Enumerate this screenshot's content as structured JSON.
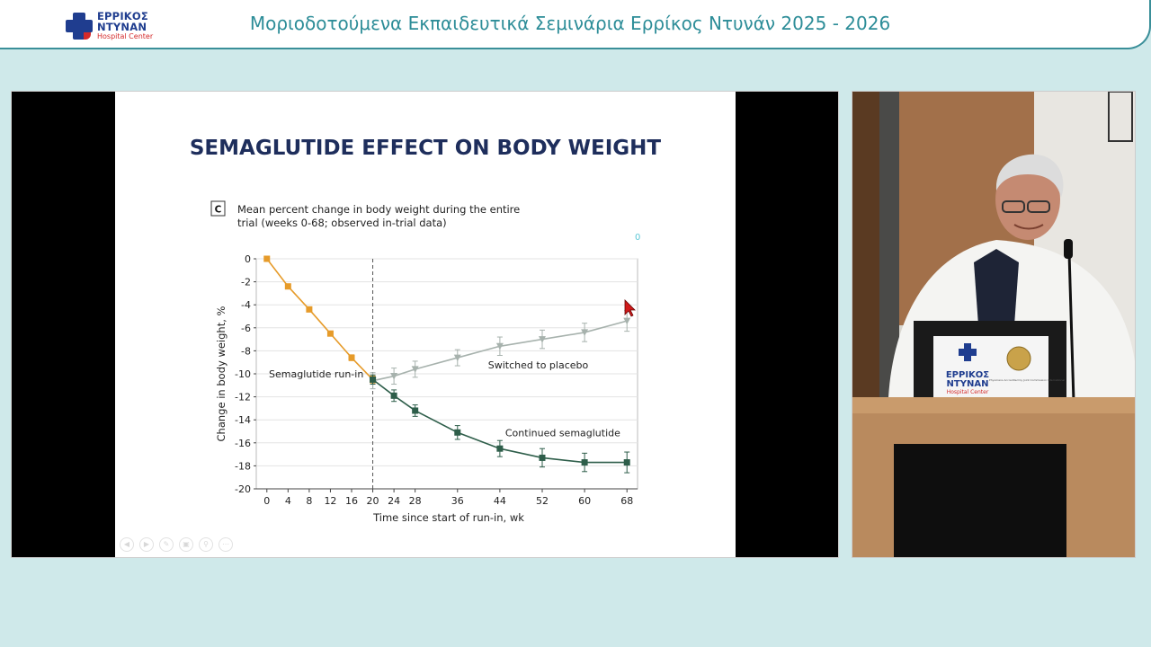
{
  "header": {
    "logo": {
      "line1": "ΕΡΡΙΚΟΣ",
      "line2": "ΝΤΥΝΑΝ",
      "line3": "Hospital Center"
    },
    "title": "Μοριοδοτούμενα Εκπαιδευτικά Σεμινάρια Ερρίκος Ντυνάν 2025 - 2026"
  },
  "slide": {
    "title": "SEMAGLUTIDE EFFECT ON BODY WEIGHT",
    "panel_label": "C",
    "caption_line1": "Mean percent change in body weight during the entire",
    "caption_line2": "trial (weeks 0-68; observed in-trial data)",
    "stray_mark": "0"
  },
  "chart_data": {
    "type": "line",
    "title": "Mean percent change in body weight during the entire trial (weeks 0-68; observed in-trial data)",
    "xlabel": "Time since start of run-in, wk",
    "ylabel": "Change in body weight, %",
    "x_ticks": [
      0,
      4,
      8,
      12,
      16,
      20,
      24,
      28,
      36,
      44,
      52,
      60,
      68
    ],
    "y_ticks": [
      0,
      -2,
      -4,
      -6,
      -8,
      -10,
      -12,
      -14,
      -16,
      -18,
      -20
    ],
    "xlim": [
      -2,
      70
    ],
    "ylim": [
      -20,
      0
    ],
    "grid": "horizontal",
    "divider_x": 20,
    "series": [
      {
        "name": "Semaglutide run-in",
        "color": "#e69b2a",
        "marker": "square",
        "x": [
          0,
          4,
          8,
          12,
          16,
          20
        ],
        "y": [
          0,
          -2.4,
          -4.4,
          -6.5,
          -8.6,
          -10.5
        ],
        "err": [
          0.15,
          0.2,
          0.2,
          0.2,
          0.25,
          0.3
        ]
      },
      {
        "name": "Switched to placebo",
        "color": "#a7b2ad",
        "marker": "triangle-down",
        "x": [
          20,
          24,
          28,
          36,
          44,
          52,
          60,
          68
        ],
        "y": [
          -10.6,
          -10.2,
          -9.6,
          -8.6,
          -7.6,
          -7.0,
          -6.4,
          -5.4
        ],
        "err": [
          0.7,
          0.7,
          0.7,
          0.7,
          0.8,
          0.8,
          0.8,
          0.9
        ]
      },
      {
        "name": "Continued semaglutide",
        "color": "#2e5e4a",
        "marker": "square",
        "x": [
          20,
          24,
          28,
          36,
          44,
          52,
          60,
          68
        ],
        "y": [
          -10.5,
          -11.9,
          -13.2,
          -15.1,
          -16.5,
          -17.3,
          -17.7,
          -17.7
        ],
        "err": [
          0.4,
          0.5,
          0.5,
          0.6,
          0.7,
          0.8,
          0.8,
          0.9
        ]
      }
    ],
    "annotations": [
      "Semaglutide run-in",
      "Switched to placebo",
      "Continued semaglutide"
    ]
  },
  "video": {
    "podium_logo": {
      "line1": "ΕΡΡΙΚΟΣ",
      "line2": "ΝΤΥΝΑΝ",
      "line3": "Hospital Center"
    },
    "podium_seal": "Physicians Accredited by Joint Commission International"
  },
  "colors": {
    "accent": "#2d8d98",
    "brand_blue": "#1f3d8f",
    "brand_red": "#d42a2a",
    "slide_title": "#1e2e5c"
  },
  "nav_icons": [
    "prev-icon",
    "next-icon",
    "pen-icon",
    "slides-icon",
    "zoom-icon",
    "more-icon"
  ]
}
